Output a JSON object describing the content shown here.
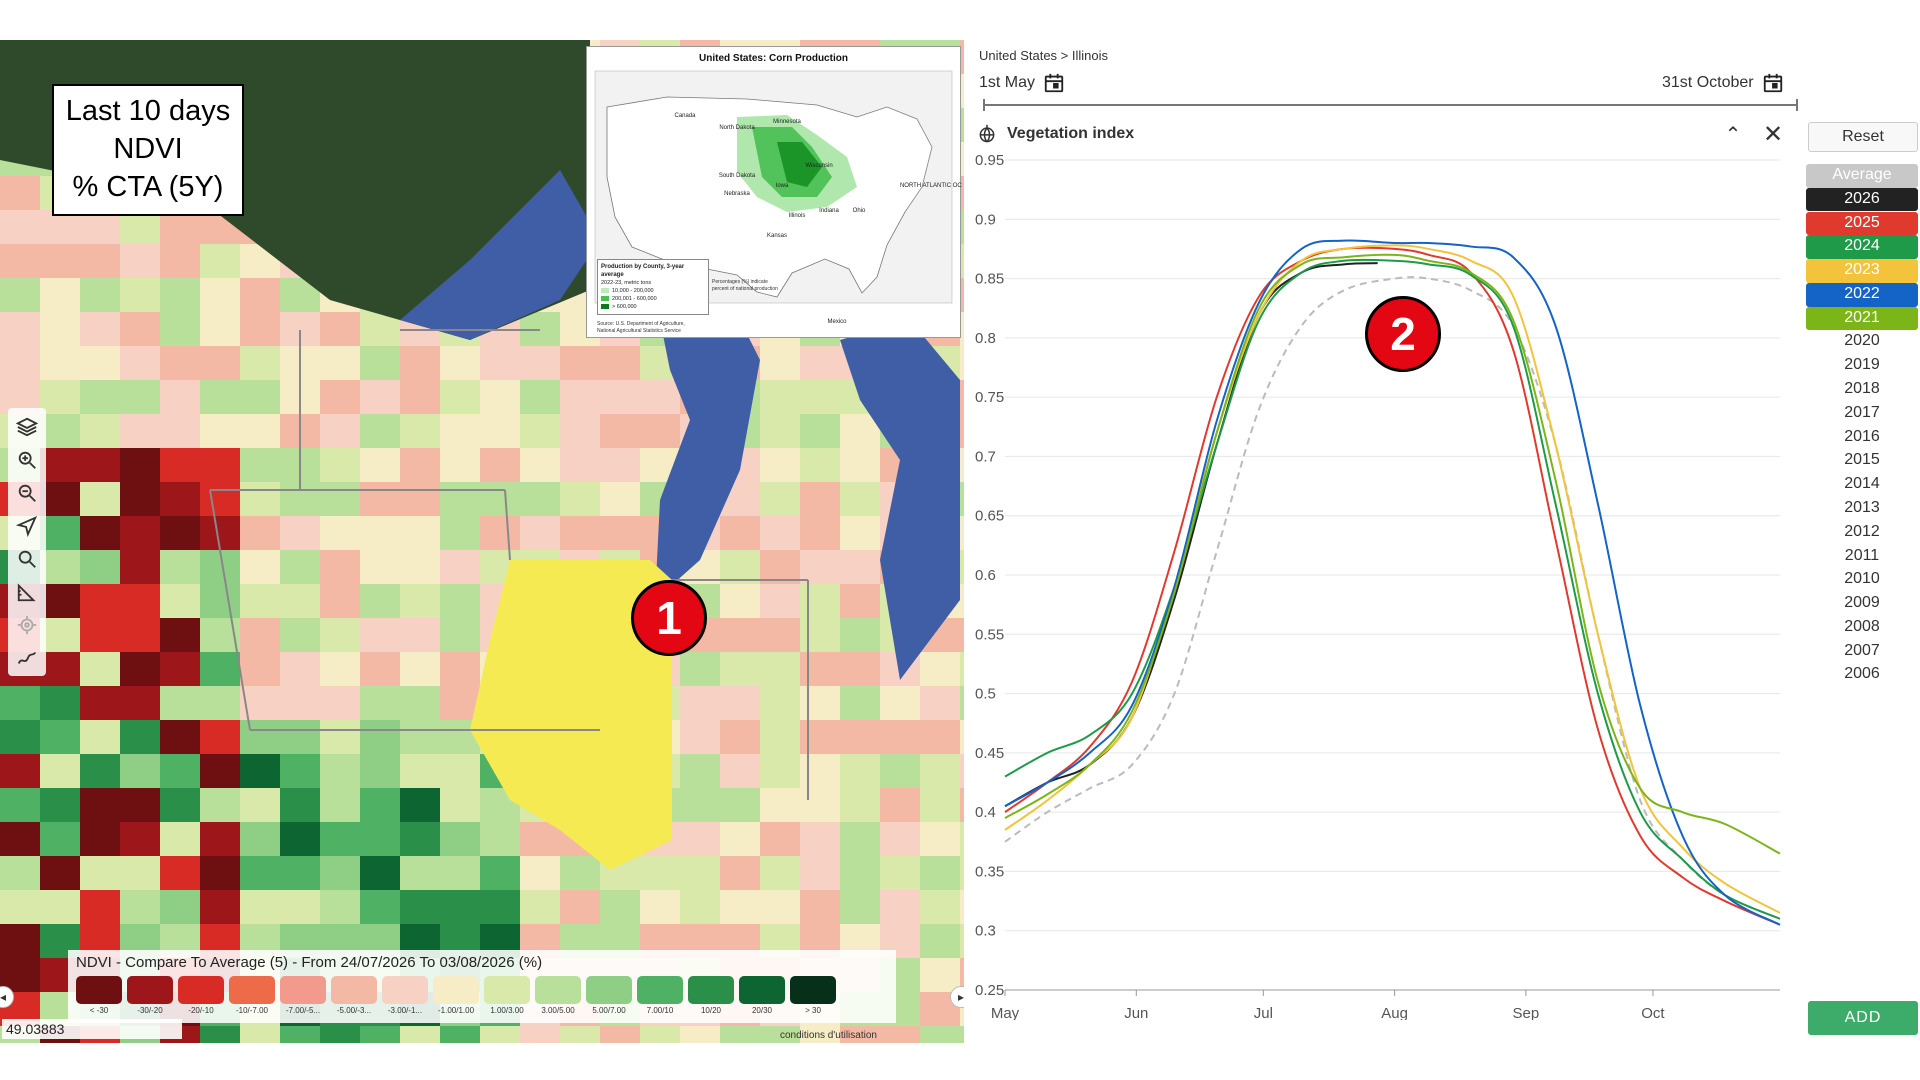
{
  "overlay": {
    "line1": "Last 10 days",
    "line2": "NDVI",
    "line3": "% CTA (5Y)"
  },
  "inset_map": {
    "title": "United States: Corn Production",
    "legend_title": "Production by County, 3-year average",
    "legend_subtitle": "2022-23, metric tons",
    "legend_items": [
      "10,000 - 200,000",
      "200,001 - 600,000",
      "> 600,000"
    ],
    "note": "Percentages (%) indicate percent of national production",
    "source_line1": "Source: U.S. Department of Agriculture,",
    "source_line2": "National Agricultural Statistics Service",
    "state_labels": [
      "North Dakota",
      "Minnesota",
      "South Dakota",
      "Wisconsin",
      "Nebraska",
      "Iowa",
      "Illinois",
      "Indiana",
      "Ohio",
      "Kansas",
      "Canada",
      "Mexico",
      "NORTH ATLANTIC OCEAN"
    ],
    "state_pcts": [
      "3%",
      "9%",
      "5%",
      "3%",
      "13%",
      "17%",
      "15%",
      "7%",
      "4%",
      "4%"
    ]
  },
  "map_tools": [
    "layers-icon",
    "zoom-in-icon",
    "zoom-out-icon",
    "navigate-icon",
    "search-icon",
    "measure-icon",
    "locate-icon",
    "draw-icon"
  ],
  "badges": {
    "one": "1",
    "two": "2"
  },
  "map_legend": {
    "title": "NDVI - Compare To Average (5) - From 24/07/2026 To 03/08/2026 (%)",
    "items": [
      {
        "label": "< -30",
        "color": "#6e0f12"
      },
      {
        "label": "-30/-20",
        "color": "#9c161a"
      },
      {
        "label": "-20/-10",
        "color": "#d92b25"
      },
      {
        "label": "-10/-7.00",
        "color": "#ee6b49"
      },
      {
        "label": "-7.00/-5...",
        "color": "#f29a8c"
      },
      {
        "label": "-5.00/-3...",
        "color": "#f4b9a4"
      },
      {
        "label": "-3.00/-1...",
        "color": "#f7d2c4"
      },
      {
        "label": "-1.00/1.00",
        "color": "#f6ecc6"
      },
      {
        "label": "1.00/3.00",
        "color": "#d8e9a9"
      },
      {
        "label": "3.00/5.00",
        "color": "#b9e09a"
      },
      {
        "label": "5.00/7.00",
        "color": "#8fcf85"
      },
      {
        "label": "7.00/10",
        "color": "#4fb164"
      },
      {
        "label": "10/20",
        "color": "#2a8f49"
      },
      {
        "label": "20/30",
        "color": "#0d6531"
      },
      {
        "label": "> 30",
        "color": "#07301b"
      }
    ]
  },
  "coords": "49.03883",
  "map_credit": "conditions d'utilisation",
  "breadcrumb": "United States > Illinois",
  "date_start": "1st May",
  "date_end": "31st October",
  "panel_title": "Vegetation index",
  "reset_label": "Reset",
  "add_label": "ADD",
  "years": [
    {
      "label": "Average",
      "bg": "#c8c8c8",
      "fg": "#ffffff"
    },
    {
      "label": "2026",
      "bg": "#222222",
      "fg": "#ffffff"
    },
    {
      "label": "2025",
      "bg": "#e03a2f",
      "fg": "#ffffff"
    },
    {
      "label": "2024",
      "bg": "#1e9a48",
      "fg": "#ffffff"
    },
    {
      "label": "2023",
      "bg": "#f2c33b",
      "fg": "#ffffff"
    },
    {
      "label": "2022",
      "bg": "#1463c6",
      "fg": "#ffffff"
    },
    {
      "label": "2021",
      "bg": "#7cb518",
      "fg": "#ffffff"
    },
    {
      "label": "2020",
      "bg": "",
      "fg": "#333333"
    },
    {
      "label": "2019",
      "bg": "",
      "fg": "#333333"
    },
    {
      "label": "2018",
      "bg": "",
      "fg": "#333333"
    },
    {
      "label": "2017",
      "bg": "",
      "fg": "#333333"
    },
    {
      "label": "2016",
      "bg": "",
      "fg": "#333333"
    },
    {
      "label": "2015",
      "bg": "",
      "fg": "#333333"
    },
    {
      "label": "2014",
      "bg": "",
      "fg": "#333333"
    },
    {
      "label": "2013",
      "bg": "",
      "fg": "#333333"
    },
    {
      "label": "2012",
      "bg": "",
      "fg": "#333333"
    },
    {
      "label": "2011",
      "bg": "",
      "fg": "#333333"
    },
    {
      "label": "2010",
      "bg": "",
      "fg": "#333333"
    },
    {
      "label": "2009",
      "bg": "",
      "fg": "#333333"
    },
    {
      "label": "2008",
      "bg": "",
      "fg": "#333333"
    },
    {
      "label": "2007",
      "bg": "",
      "fg": "#333333"
    },
    {
      "label": "2006",
      "bg": "",
      "fg": "#333333"
    }
  ],
  "chart_data": {
    "type": "line",
    "title": "Vegetation index",
    "xlabel": "",
    "ylabel": "",
    "x_ticks": [
      "May",
      "Jun",
      "Jul",
      "Aug",
      "Sep",
      "Oct"
    ],
    "x_tick_days": [
      0,
      31,
      61,
      92,
      123,
      153
    ],
    "xlim": [
      0,
      183
    ],
    "ylim": [
      0.25,
      0.95
    ],
    "y_ticks": [
      0.25,
      0.3,
      0.35,
      0.4,
      0.45,
      0.5,
      0.55,
      0.6,
      0.65,
      0.7,
      0.75,
      0.8,
      0.85,
      0.9,
      0.95
    ],
    "grid": true,
    "series": [
      {
        "name": "Average",
        "color": "#bbbbbb",
        "dashed": true,
        "x": [
          0,
          10,
          20,
          30,
          40,
          50,
          60,
          70,
          80,
          92,
          100,
          110,
          120,
          130,
          140,
          150,
          160,
          170,
          183
        ],
        "y": [
          0.375,
          0.4,
          0.42,
          0.44,
          0.5,
          0.62,
          0.74,
          0.81,
          0.84,
          0.85,
          0.85,
          0.84,
          0.81,
          0.71,
          0.55,
          0.41,
          0.36,
          0.33,
          0.31
        ]
      },
      {
        "name": "2026",
        "color": "#222222",
        "x": [
          0,
          10,
          20,
          30,
          40,
          50,
          60,
          70,
          80,
          88
        ],
        "y": [
          0.405,
          0.425,
          0.44,
          0.48,
          0.58,
          0.71,
          0.82,
          0.855,
          0.862,
          0.863
        ]
      },
      {
        "name": "2025",
        "color": "#e03a2f",
        "x": [
          0,
          10,
          20,
          30,
          40,
          50,
          60,
          70,
          80,
          92,
          100,
          110,
          120,
          130,
          140,
          150,
          160,
          170,
          183
        ],
        "y": [
          0.4,
          0.425,
          0.455,
          0.51,
          0.62,
          0.75,
          0.835,
          0.865,
          0.875,
          0.875,
          0.87,
          0.855,
          0.79,
          0.63,
          0.47,
          0.38,
          0.345,
          0.325,
          0.305
        ]
      },
      {
        "name": "2024",
        "color": "#1e9a48",
        "x": [
          0,
          10,
          20,
          30,
          40,
          50,
          60,
          70,
          80,
          92,
          100,
          110,
          120,
          130,
          140,
          150,
          160,
          170,
          183
        ],
        "y": [
          0.43,
          0.45,
          0.465,
          0.5,
          0.59,
          0.71,
          0.815,
          0.855,
          0.865,
          0.865,
          0.862,
          0.853,
          0.81,
          0.66,
          0.5,
          0.4,
          0.36,
          0.33,
          0.31
        ]
      },
      {
        "name": "2023",
        "color": "#f2c33b",
        "x": [
          0,
          10,
          20,
          30,
          40,
          50,
          60,
          70,
          80,
          92,
          100,
          110,
          120,
          130,
          140,
          150,
          160,
          170,
          183
        ],
        "y": [
          0.385,
          0.41,
          0.44,
          0.48,
          0.59,
          0.72,
          0.82,
          0.865,
          0.875,
          0.878,
          0.875,
          0.865,
          0.835,
          0.71,
          0.55,
          0.42,
          0.37,
          0.34,
          0.315
        ]
      },
      {
        "name": "2022",
        "color": "#1463c6",
        "x": [
          0,
          10,
          20,
          30,
          40,
          50,
          60,
          70,
          80,
          92,
          100,
          110,
          120,
          130,
          140,
          150,
          160,
          170,
          183
        ],
        "y": [
          0.405,
          0.425,
          0.45,
          0.49,
          0.59,
          0.73,
          0.83,
          0.875,
          0.882,
          0.88,
          0.88,
          0.877,
          0.868,
          0.81,
          0.66,
          0.49,
          0.38,
          0.33,
          0.305
        ]
      },
      {
        "name": "2021",
        "color": "#7cb518",
        "x": [
          0,
          10,
          20,
          30,
          40,
          50,
          60,
          70,
          80,
          92,
          100,
          110,
          120,
          130,
          140,
          150,
          160,
          170,
          183
        ],
        "y": [
          0.395,
          0.415,
          0.44,
          0.485,
          0.585,
          0.72,
          0.825,
          0.862,
          0.868,
          0.87,
          0.865,
          0.855,
          0.815,
          0.68,
          0.51,
          0.42,
          0.4,
          0.39,
          0.365
        ]
      }
    ]
  }
}
